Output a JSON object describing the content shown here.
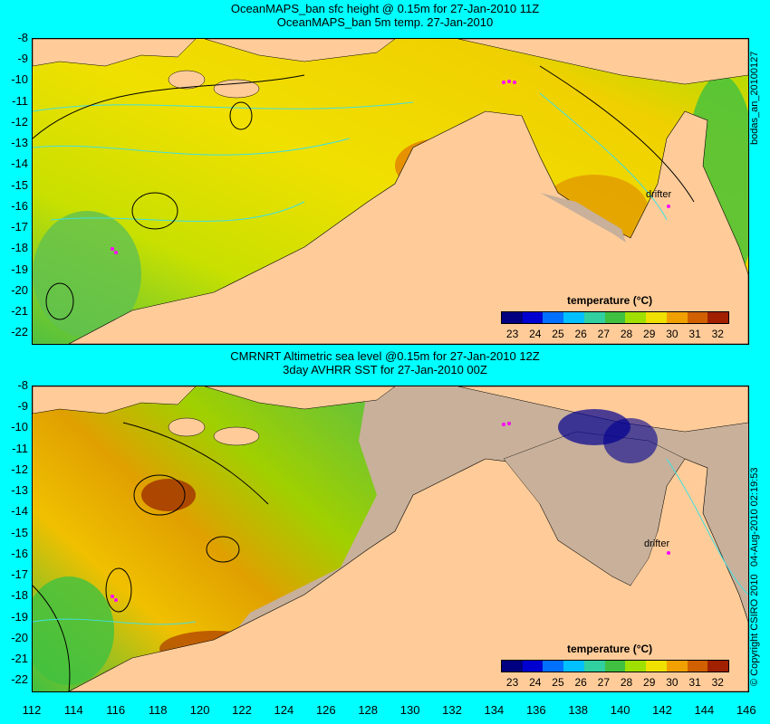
{
  "panel1": {
    "title1": "OceanMAPS_ban sfc height @ 0.15m for 27-Jan-2010 11Z",
    "title2": "OceanMAPS_ban 5m temp. 27-Jan-2010",
    "side_label": "bodas_an_20100127",
    "drifter_label": "drifter"
  },
  "panel2": {
    "title1": "CMRNRT Altimetric sea level  @0.15m  for 27-Jan-2010 12Z",
    "title2": "3day AVHRR SST for 27-Jan-2010 00Z",
    "side_label": "04-Aug-2010 02:19:53",
    "copyright": "© Copyright CSIRO 2010",
    "drifter_label": "drifter"
  },
  "colorbar": {
    "title": "temperature (°C)",
    "ticks": [
      "23",
      "24",
      "25",
      "26",
      "27",
      "28",
      "29",
      "30",
      "31",
      "32"
    ],
    "colors": [
      "#000080",
      "#0000d0",
      "#0070ff",
      "#00c0ff",
      "#30d0a0",
      "#40c040",
      "#a0e000",
      "#f0e000",
      "#f0a000",
      "#d06000",
      "#a02000"
    ]
  },
  "y_ticks": [
    "-8",
    "-9",
    "-10",
    "-11",
    "-12",
    "-13",
    "-14",
    "-15",
    "-16",
    "-17",
    "-18",
    "-19",
    "-20",
    "-21",
    "-22"
  ],
  "x_ticks": [
    "112",
    "114",
    "116",
    "118",
    "120",
    "122",
    "124",
    "126",
    "128",
    "130",
    "132",
    "134",
    "136",
    "138",
    "140",
    "142",
    "144",
    "146"
  ],
  "colors": {
    "background": "#00ffff",
    "land": "#ffcc99",
    "no_data": "#c8b09a",
    "contour": "#40e0e0",
    "drifter": "#ff00ff"
  }
}
